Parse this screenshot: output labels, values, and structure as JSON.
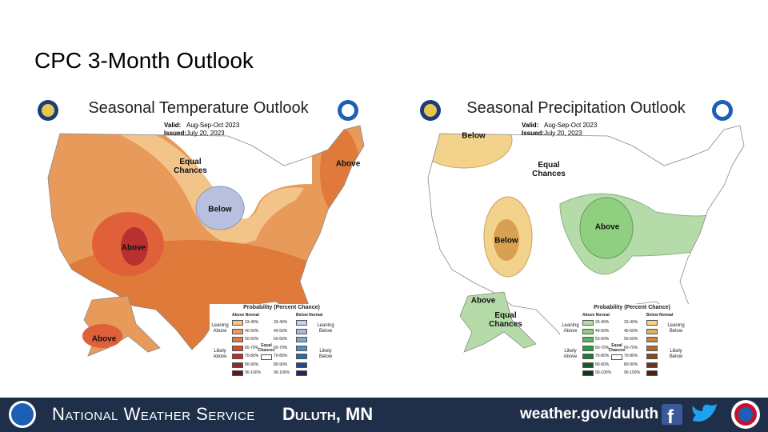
{
  "title": "CPC 3-Month Outlook",
  "maps": [
    {
      "title": "Seasonal Temperature Outlook",
      "valid_label": "Valid:",
      "valid": "Aug-Sep-Oct 2023",
      "issued_label": "Issued:",
      "issued": "July 20, 2023",
      "regions": [
        "Equal Chances",
        "Below",
        "Above",
        "Above",
        "Above"
      ],
      "legend": {
        "title": "Probability (Percent Chance)",
        "above_header": "Above Normal",
        "below_header": "Below Normal",
        "bins": [
          "33-40%",
          "40-50%",
          "50-60%",
          "60-70%",
          "70-80%",
          "80-90%",
          "90-100%"
        ],
        "above_colors": [
          "#f3c48a",
          "#e89a5a",
          "#e07a3a",
          "#d84c2a",
          "#b83030",
          "#8e2a2a",
          "#5a1a1a"
        ],
        "below_colors": [
          "#c9d0e6",
          "#a9b8d9",
          "#7fa7d3",
          "#4a8fc8",
          "#2a6aa8",
          "#28448a",
          "#1f2a5a"
        ],
        "leaning_above": "Leaning Above",
        "likely_above": "Likely Above",
        "equal_chances": "Equal Chances",
        "leaning_below": "Leaning Below",
        "likely_below": "Likely Below"
      }
    },
    {
      "title": "Seasonal Precipitation Outlook",
      "valid_label": "Valid:",
      "valid": "Aug-Sep-Oct 2023",
      "issued_label": "Issued:",
      "issued": "July 20, 2023",
      "regions": [
        "Below",
        "Equal Chances",
        "Below",
        "Above",
        "Above",
        "Equal Chances"
      ],
      "legend": {
        "title": "Probability (Percent Chance)",
        "above_header": "Above Normal",
        "below_header": "Below Normal",
        "bins": [
          "33-40%",
          "40-50%",
          "50-60%",
          "60-70%",
          "70-80%",
          "80-90%",
          "90-100%"
        ],
        "above_colors": [
          "#b5dca8",
          "#8fcf80",
          "#5ab45a",
          "#2e9a48",
          "#1f7a3a",
          "#175a2a",
          "#0f3a1a"
        ],
        "below_colors": [
          "#f3d28c",
          "#e0b060",
          "#c88a40",
          "#b06a30",
          "#8a4a20",
          "#6a3418",
          "#4a2410"
        ],
        "leaning_above": "Leaning Above",
        "likely_above": "Likely Above",
        "equal_chances": "Equal Chances",
        "leaning_below": "Leaning Below",
        "likely_below": "Likely Below"
      }
    }
  ],
  "footer": {
    "agency": "National Weather Service",
    "office": "Duluth, MN",
    "url": "weather.gov/duluth"
  }
}
